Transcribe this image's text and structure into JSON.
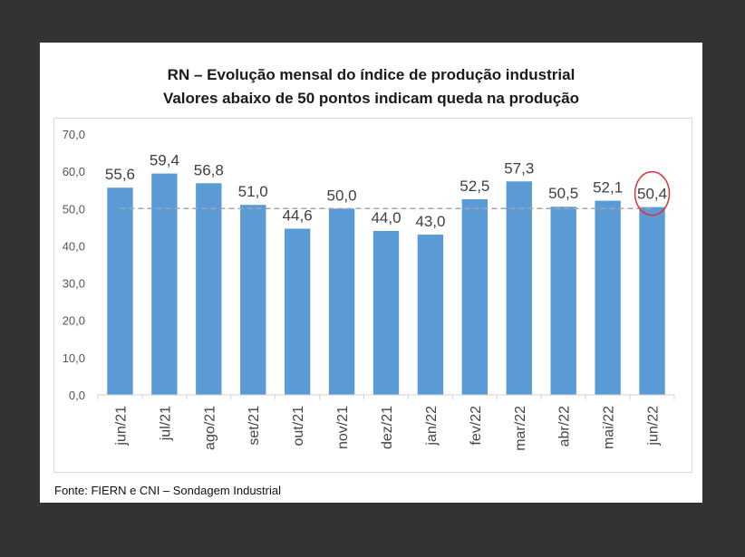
{
  "title_line1": "RN – Evolução mensal do índice de produção industrial",
  "title_line2": "Valores abaixo de 50 pontos indicam queda na produção",
  "source": "Fonte: FIERN e CNI – Sondagem Industrial",
  "colors": {
    "bar": "#5b9bd5",
    "reference_line": "#a6a6a6",
    "highlight_circle": "#e0303a",
    "background": "#333333"
  },
  "chart_data": {
    "type": "bar",
    "title": "RN – Evolução mensal do índice de produção industrial",
    "subtitle": "Valores abaixo de 50 pontos indicam queda na produção",
    "categories": [
      "jun/21",
      "jul/21",
      "ago/21",
      "set/21",
      "out/21",
      "nov/21",
      "dez/21",
      "jan/22",
      "fev/22",
      "mar/22",
      "abr/22",
      "mai/22",
      "jun/22"
    ],
    "values": [
      55.6,
      59.4,
      56.8,
      51.0,
      44.6,
      50.0,
      44.0,
      43.0,
      52.5,
      57.3,
      50.5,
      52.1,
      50.4
    ],
    "value_labels": [
      "55,6",
      "59,4",
      "56,8",
      "51,0",
      "44,6",
      "50,0",
      "44,0",
      "43,0",
      "52,5",
      "57,3",
      "50,5",
      "52,1",
      "50,4"
    ],
    "ylim": [
      0,
      70
    ],
    "yticks": [
      0,
      10,
      20,
      30,
      40,
      50,
      60,
      70
    ],
    "ytick_labels": [
      "0,0",
      "10,0",
      "20,0",
      "30,0",
      "40,0",
      "50,0",
      "60,0",
      "70,0"
    ],
    "reference_line": 50,
    "highlighted_category": "jun/22",
    "grid": false,
    "legend": "none"
  }
}
